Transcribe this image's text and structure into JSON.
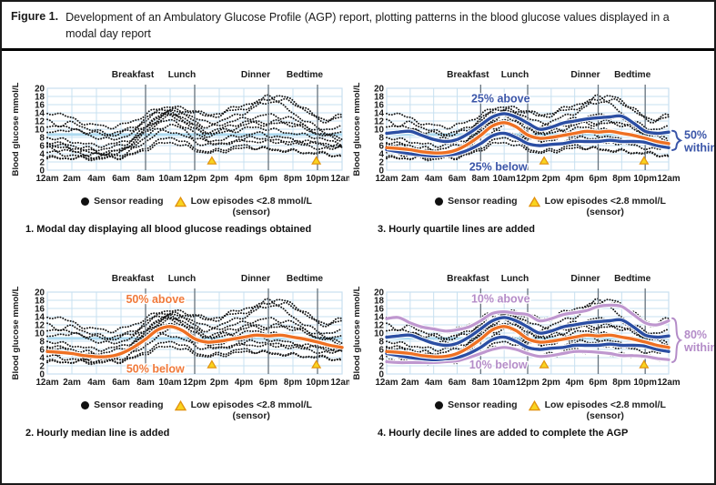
{
  "header": {
    "figure_label": "Figure 1.",
    "title": "Development of an Ambulatory Glucose Profile (AGP) report, plotting patterns in the blood glucose values displayed in a modal day report"
  },
  "legend": {
    "sensor_label": "Sensor reading",
    "low_label": "Low episodes <2.8 mmol/L",
    "low_label_2": "(sensor)"
  },
  "colors": {
    "median": "#ee7023",
    "quartile": "#2b4ea3",
    "decile": "#bf97cf",
    "annotation_blue": "#3a55a8",
    "annotation_orange": "#f0793a",
    "annotation_purple": "#b48cc8",
    "grid": "#c7e0f0",
    "target_band": "#addaf0",
    "meal_line": "#67737d",
    "dots": "#161616",
    "triangle_fill": "#f9d41f",
    "triangle_stroke": "#e2930f"
  },
  "panels": [
    {
      "id": "modal-day",
      "caption": "1. Modal day displaying all blood glucose readings obtained",
      "overlays": [],
      "labels": [],
      "brace": null
    },
    {
      "id": "quartiles",
      "caption": "3. Hourly quartile lines are added",
      "overlays": [
        "median",
        "quartiles"
      ],
      "labels": [
        {
          "text": "25% above",
          "hour": 9.7,
          "value": 17.4,
          "color": "annotation_blue"
        },
        {
          "text": "25% below",
          "hour": 9.5,
          "value": 0.8,
          "color": "annotation_blue"
        }
      ],
      "brace": {
        "lines": [
          "50%",
          "within"
        ],
        "from": 4.9,
        "to": 9.6,
        "color": "annotation_blue"
      }
    },
    {
      "id": "median",
      "caption": "2. Hourly median line is added",
      "overlays": [
        "median"
      ],
      "labels": [
        {
          "text": "50% above",
          "hour": 8.8,
          "value": 18.2,
          "color": "annotation_orange"
        },
        {
          "text": "50% below",
          "hour": 8.8,
          "value": 1.2,
          "color": "annotation_orange"
        }
      ],
      "brace": null
    },
    {
      "id": "deciles",
      "caption": "4. Hourly decile lines are added to complete the AGP",
      "overlays": [
        "median",
        "quartiles",
        "deciles"
      ],
      "labels": [
        {
          "text": "10% above",
          "hour": 9.7,
          "value": 18.3,
          "color": "annotation_purple"
        },
        {
          "text": "10% below",
          "hour": 9.5,
          "value": 2.2,
          "color": "annotation_purple"
        }
      ],
      "brace": {
        "lines": [
          "80%",
          "within"
        ],
        "from": 2.9,
        "to": 13.6,
        "color": "annotation_purple"
      }
    }
  ],
  "chart_data": {
    "type": "scatter+line (AGP modal day, same data all four panels)",
    "ylabel": "Blood glucose mmol/L",
    "ylim": [
      0,
      20
    ],
    "y_ticks": [
      20,
      18,
      16,
      14,
      12,
      10,
      8,
      6,
      4,
      2,
      0
    ],
    "x_tick_labels": [
      "12am",
      "2am",
      "4am",
      "6am",
      "8am",
      "10am",
      "12pm",
      "2pm",
      "4pm",
      "6pm",
      "8pm",
      "10pm",
      "12am"
    ],
    "x_tick_hours": [
      0,
      2,
      4,
      6,
      8,
      10,
      12,
      14,
      16,
      18,
      20,
      22,
      24
    ],
    "meal_markers": [
      {
        "label": "Breakfast",
        "hour": 8
      },
      {
        "label": "Lunch",
        "hour": 12
      },
      {
        "label": "Dinner",
        "hour": 18
      },
      {
        "label": "Bedtime",
        "hour": 22
      }
    ],
    "target_line_value": 8.7,
    "percentiles": {
      "median": [
        5.5,
        5.3,
        5.0,
        4.5,
        4.2,
        4.3,
        5.0,
        6.5,
        8.5,
        10.8,
        11.6,
        10.6,
        8.6,
        7.8,
        8.0,
        8.5,
        9.0,
        9.5,
        9.3,
        9.5,
        9.0,
        8.5,
        7.8,
        7.0,
        6.5
      ],
      "q75": [
        9.0,
        9.3,
        9.5,
        8.5,
        7.5,
        7.0,
        7.5,
        9.0,
        11.0,
        13.0,
        13.8,
        13.0,
        11.5,
        10.0,
        10.5,
        11.5,
        12.0,
        12.5,
        12.8,
        13.0,
        13.2,
        11.5,
        9.5,
        9.0,
        9.3
      ],
      "q25": [
        5.0,
        4.5,
        4.0,
        3.7,
        3.5,
        3.7,
        4.0,
        5.0,
        6.5,
        8.4,
        9.0,
        8.0,
        6.5,
        6.0,
        6.3,
        6.5,
        7.0,
        7.0,
        7.0,
        7.3,
        7.0,
        7.0,
        6.8,
        6.0,
        5.5
      ],
      "p90": [
        13.5,
        13.8,
        12.5,
        11.5,
        11.0,
        10.5,
        10.8,
        11.5,
        13.0,
        14.8,
        15.2,
        14.8,
        14.5,
        13.0,
        13.5,
        14.5,
        15.0,
        15.5,
        16.5,
        16.8,
        16.5,
        14.5,
        12.5,
        12.0,
        13.0
      ],
      "p10": [
        3.0,
        2.8,
        2.8,
        2.8,
        2.8,
        3.0,
        3.2,
        4.0,
        5.0,
        6.0,
        6.5,
        6.0,
        5.0,
        4.3,
        4.5,
        5.0,
        5.5,
        5.5,
        5.3,
        5.0,
        4.5,
        4.5,
        4.3,
        3.8,
        3.5
      ]
    },
    "scatter_traces": [
      [
        3.2,
        3.0,
        2.9,
        3.0,
        3.1,
        3.0,
        3.3,
        4.0,
        5.5,
        7.0,
        8.0,
        7.0,
        5.5,
        4.5,
        5.0,
        5.5,
        6.0,
        5.5,
        5.0,
        4.8,
        4.5,
        4.3,
        4.0,
        3.8,
        3.5
      ],
      [
        5.5,
        5.0,
        4.5,
        4.0,
        3.8,
        4.0,
        4.5,
        6.0,
        8.0,
        10.0,
        11.0,
        10.0,
        8.0,
        7.0,
        7.5,
        8.0,
        8.5,
        9.0,
        8.5,
        8.0,
        7.5,
        7.0,
        6.5,
        6.0,
        5.5
      ],
      [
        6.5,
        6.0,
        5.5,
        5.0,
        4.5,
        4.5,
        5.0,
        7.0,
        9.5,
        12.0,
        13.0,
        12.0,
        10.0,
        8.5,
        9.0,
        9.5,
        10.0,
        10.5,
        10.0,
        9.5,
        9.0,
        8.5,
        8.0,
        7.0,
        6.5
      ],
      [
        9.0,
        9.5,
        10.0,
        9.0,
        8.0,
        7.5,
        8.0,
        9.0,
        11.0,
        13.0,
        14.0,
        13.5,
        12.0,
        10.5,
        11.0,
        12.0,
        12.5,
        13.0,
        13.5,
        13.0,
        12.5,
        11.0,
        9.5,
        9.0,
        9.5
      ],
      [
        13.5,
        14.0,
        12.5,
        11.5,
        11.0,
        10.5,
        11.0,
        12.0,
        13.5,
        15.0,
        15.5,
        15.0,
        14.5,
        13.0,
        13.5,
        14.5,
        15.0,
        16.0,
        16.5,
        17.0,
        16.5,
        14.5,
        12.5,
        12.0,
        13.0
      ],
      [
        7.0,
        6.5,
        6.0,
        5.5,
        5.0,
        5.5,
        6.0,
        7.5,
        10.0,
        12.5,
        13.5,
        12.5,
        10.5,
        9.0,
        9.5,
        10.0,
        11.0,
        11.5,
        11.0,
        11.5,
        11.0,
        10.0,
        9.0,
        8.0,
        7.5
      ],
      [
        4.5,
        4.0,
        3.6,
        3.4,
        3.3,
        3.5,
        3.8,
        5.0,
        7.0,
        9.0,
        9.5,
        8.5,
        7.0,
        6.2,
        6.5,
        6.8,
        7.2,
        7.0,
        6.8,
        7.0,
        6.8,
        6.9,
        6.6,
        6.2,
        5.8
      ],
      [
        10.5,
        11.0,
        11.5,
        10.5,
        9.5,
        9.0,
        9.5,
        10.5,
        12.5,
        14.5,
        15.0,
        14.0,
        13.0,
        11.5,
        12.0,
        13.0,
        14.0,
        15.5,
        18.5,
        16.0,
        14.0,
        12.0,
        10.5,
        10.0,
        10.5
      ],
      [
        6.0,
        5.5,
        5.0,
        4.5,
        4.0,
        4.2,
        4.8,
        6.5,
        9.0,
        11.5,
        12.0,
        11.0,
        9.0,
        7.5,
        6.0,
        7.0,
        7.5,
        8.0,
        7.5,
        7.0,
        6.5,
        6.0,
        5.5,
        5.0,
        6.0
      ],
      [
        2.8,
        2.9,
        3.0,
        2.8,
        2.7,
        2.9,
        3.1,
        3.8,
        5.0,
        6.2,
        6.8,
        6.0,
        5.0,
        4.2,
        4.5,
        5.0,
        5.3,
        5.5,
        5.2,
        5.0,
        4.7,
        4.4,
        4.2,
        4.0,
        3.2
      ],
      [
        12.0,
        11.0,
        10.0,
        9.5,
        9.0,
        8.5,
        9.0,
        10.0,
        12.0,
        14.0,
        14.5,
        14.0,
        14.5,
        13.5,
        14.0,
        15.0,
        16.0,
        16.5,
        17.5,
        18.0,
        17.0,
        15.0,
        13.0,
        12.5,
        13.5
      ],
      [
        8.0,
        7.5,
        7.0,
        6.5,
        6.0,
        6.2,
        6.8,
        8.0,
        10.5,
        13.0,
        14.0,
        13.0,
        11.0,
        9.5,
        10.0,
        11.0,
        11.5,
        12.0,
        11.5,
        12.0,
        11.5,
        10.5,
        9.0,
        8.5,
        8.0
      ]
    ],
    "low_episodes": [
      {
        "hour": 13.4,
        "value": 2.1
      },
      {
        "hour": 21.9,
        "value": 2.1
      }
    ]
  }
}
